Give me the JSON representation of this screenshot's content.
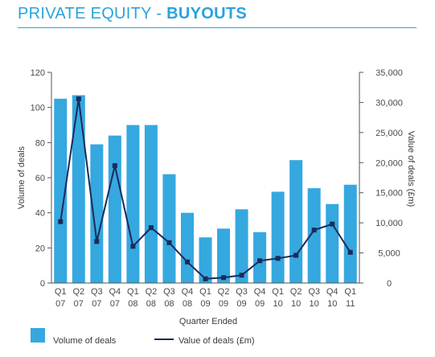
{
  "header": {
    "title_prefix": "PRIVATE EQUITY - ",
    "title_emphasis": "BUYOUTS"
  },
  "colors": {
    "title": "#2aa3dc",
    "bar": "#35a8e0",
    "line": "#1b2a5a",
    "axis": "#555555"
  },
  "chart_data": {
    "type": "bar",
    "title": "",
    "xlabel": "Quarter Ended",
    "ylabel": "Volume of deals",
    "y2label": "Value of deals (£m)",
    "categories": [
      [
        "Q1",
        "07"
      ],
      [
        "Q2",
        "07"
      ],
      [
        "Q3",
        "07"
      ],
      [
        "Q4",
        "07"
      ],
      [
        "Q1",
        "08"
      ],
      [
        "Q2",
        "08"
      ],
      [
        "Q3",
        "08"
      ],
      [
        "Q4",
        "08"
      ],
      [
        "Q1",
        "09"
      ],
      [
        "Q2",
        "09"
      ],
      [
        "Q3",
        "09"
      ],
      [
        "Q4",
        "09"
      ],
      [
        "Q1",
        "10"
      ],
      [
        "Q2",
        "10"
      ],
      [
        "Q3",
        "10"
      ],
      [
        "Q4",
        "10"
      ],
      [
        "Q1",
        "11"
      ]
    ],
    "ylim": [
      0,
      120
    ],
    "yticks": [
      0,
      20,
      40,
      60,
      80,
      100,
      120
    ],
    "y2lim": [
      0,
      35000
    ],
    "y2ticks": [
      "0",
      "5,000",
      "10,000",
      "15,000",
      "20,000",
      "25,000",
      "30,000",
      "35,000"
    ],
    "series": [
      {
        "name": "Volume of deals",
        "kind": "bar",
        "axis": "left",
        "values": [
          105,
          107,
          79,
          84,
          90,
          90,
          62,
          40,
          26,
          31,
          42,
          29,
          52,
          70,
          54,
          45,
          56
        ]
      },
      {
        "name": "Value of deals (£m)",
        "kind": "line",
        "axis": "right",
        "values": [
          10200,
          30600,
          6900,
          19500,
          6100,
          9200,
          6700,
          3500,
          700,
          900,
          1300,
          3700,
          4100,
          4600,
          8800,
          9800,
          5100
        ]
      }
    ],
    "legend": {
      "placement": "bottom",
      "items": [
        "Volume of deals",
        "Value of deals (£m)"
      ]
    },
    "grid": false
  }
}
